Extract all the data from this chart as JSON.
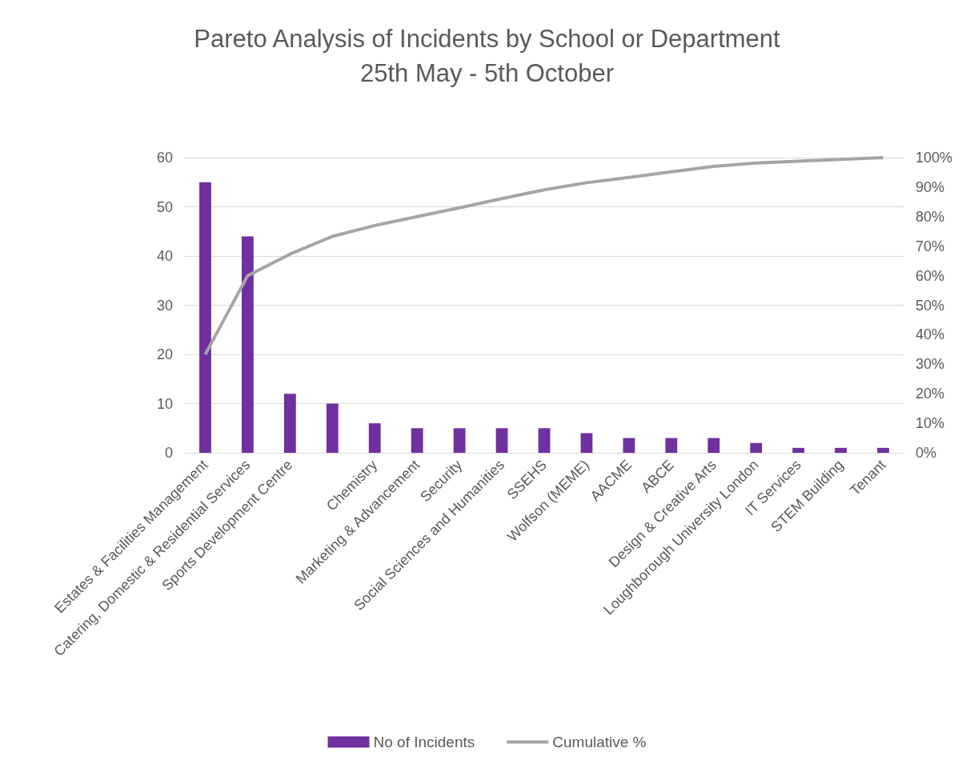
{
  "chart_data": {
    "type": "bar",
    "title": "Pareto Analysis of Incidents by School or Department",
    "subtitle": "25th May - 5th October",
    "categories": [
      "Estates & Facilities Management",
      "Catering, Domestic & Residential Services",
      "Sports Development Centre",
      null,
      "Chemistry",
      "Marketing & Advancement",
      "Security",
      "Social Sciences and Humanities",
      "SSEHS",
      "Wolfson (MEME)",
      "AACME",
      "ABCE",
      "Design & Creative Arts",
      "Loughborough University London",
      "IT Services",
      "STEM Building",
      "Tenant"
    ],
    "series": [
      {
        "name": "No of Incidents",
        "color": "#7030a0",
        "values": [
          55,
          44,
          12,
          10,
          6,
          5,
          5,
          5,
          5,
          4,
          3,
          3,
          3,
          2,
          1,
          1,
          1
        ]
      },
      {
        "name": "Cumulative %",
        "type": "line",
        "axis": "y2",
        "color": "#a5a5a5",
        "values": [
          33.3,
          60,
          67.3,
          73.3,
          77,
          80,
          83,
          86.1,
          89.1,
          91.5,
          93.3,
          95.2,
          97,
          98.2,
          98.8,
          99.4,
          100
        ]
      }
    ],
    "ylim": [
      0,
      60
    ],
    "yticks": [
      0,
      10,
      20,
      30,
      40,
      50,
      60
    ],
    "y2lim": [
      0,
      100
    ],
    "y2ticks": [
      {
        "value": 0,
        "label": "0%"
      },
      {
        "value": 10,
        "label": "10%"
      },
      {
        "value": 20,
        "label": "20%"
      },
      {
        "value": 30,
        "label": "30%"
      },
      {
        "value": 40,
        "label": "40%"
      },
      {
        "value": 50,
        "label": "50%"
      },
      {
        "value": 60,
        "label": "60%"
      },
      {
        "value": 70,
        "label": "70%"
      },
      {
        "value": 80,
        "label": "80%"
      },
      {
        "value": 90,
        "label": "90%"
      },
      {
        "value": 100,
        "label": "100%"
      }
    ],
    "grid": "y",
    "legend": "bottom",
    "marker": "none"
  }
}
